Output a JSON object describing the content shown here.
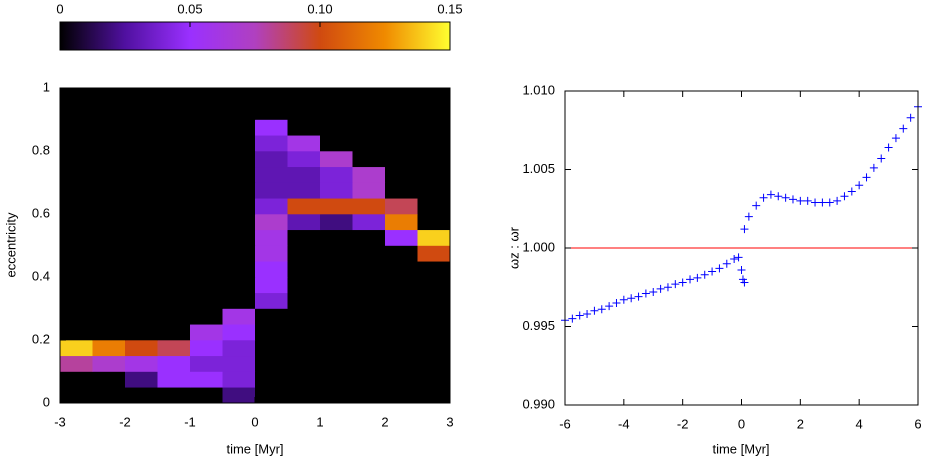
{
  "chart_data": [
    {
      "type": "heatmap",
      "xlabel": "time [Myr]",
      "ylabel": "eccentricity",
      "x_bins": [
        -3,
        -2.5,
        -2,
        -1.5,
        -1,
        -0.5,
        0,
        0.5,
        1,
        1.5,
        2,
        2.5,
        3
      ],
      "y_bins": [
        0,
        0.05,
        0.1,
        0.15,
        0.2,
        0.25,
        0.3,
        0.35,
        0.4,
        0.45,
        0.5,
        0.55,
        0.6,
        0.65,
        0.7,
        0.75,
        0.8,
        0.85,
        0.9,
        0.95,
        1
      ],
      "z": [
        [
          0,
          0,
          0,
          0,
          0,
          0.02,
          0,
          0,
          0,
          0,
          0,
          0
        ],
        [
          0,
          0,
          0.02,
          0.05,
          0.05,
          0.04,
          0,
          0,
          0,
          0,
          0,
          0
        ],
        [
          0.08,
          0.07,
          0.06,
          0.05,
          0.04,
          0.04,
          0,
          0,
          0,
          0,
          0,
          0
        ],
        [
          0.14,
          0.12,
          0.1,
          0.09,
          0.05,
          0.04,
          0,
          0,
          0,
          0,
          0,
          0
        ],
        [
          0,
          0,
          0,
          0,
          0.06,
          0.05,
          0,
          0,
          0,
          0,
          0,
          0
        ],
        [
          0,
          0,
          0,
          0,
          0,
          0.06,
          0,
          0,
          0,
          0,
          0,
          0
        ],
        [
          0,
          0,
          0,
          0,
          0,
          0,
          0.04,
          0,
          0,
          0,
          0,
          0
        ],
        [
          0,
          0,
          0,
          0,
          0,
          0,
          0.05,
          0,
          0,
          0,
          0,
          0
        ],
        [
          0,
          0,
          0,
          0,
          0,
          0,
          0.05,
          0,
          0,
          0,
          0,
          0
        ],
        [
          0,
          0,
          0,
          0,
          0,
          0,
          0.06,
          0,
          0,
          0,
          0,
          0.1
        ],
        [
          0,
          0,
          0,
          0,
          0,
          0,
          0.06,
          0,
          0,
          0,
          0.05,
          0.14
        ],
        [
          0,
          0,
          0,
          0,
          0,
          0,
          0.07,
          0.03,
          0.02,
          0.04,
          0.12,
          0
        ],
        [
          0,
          0,
          0,
          0,
          0,
          0,
          0.04,
          0.1,
          0.1,
          0.1,
          0.09,
          0
        ],
        [
          0,
          0,
          0,
          0,
          0,
          0,
          0.03,
          0.03,
          0.04,
          0.07,
          0,
          0
        ],
        [
          0,
          0,
          0,
          0,
          0,
          0,
          0.03,
          0.03,
          0.04,
          0.07,
          0,
          0
        ],
        [
          0,
          0,
          0,
          0,
          0,
          0,
          0.03,
          0.04,
          0.07,
          0,
          0,
          0
        ],
        [
          0,
          0,
          0,
          0,
          0,
          0,
          0.04,
          0.06,
          0,
          0,
          0,
          0
        ],
        [
          0,
          0,
          0,
          0,
          0,
          0,
          0.05,
          0,
          0,
          0,
          0,
          0
        ],
        [
          0,
          0,
          0,
          0,
          0,
          0,
          0,
          0,
          0,
          0,
          0,
          0
        ],
        [
          0,
          0,
          0,
          0,
          0,
          0,
          0,
          0,
          0,
          0,
          0,
          0
        ]
      ],
      "xlim": [
        -3,
        3
      ],
      "xticks": [
        -3,
        -2,
        -1,
        0,
        1,
        2,
        3
      ],
      "ylim": [
        0,
        1
      ],
      "yticks": [
        0,
        0.2,
        0.4,
        0.6,
        0.8,
        1
      ],
      "zlim": [
        0,
        0.15
      ],
      "zticks": [
        0,
        0.05,
        {
          "value": 0.1,
          "label": "0.10"
        },
        0.15
      ],
      "colormap": [
        "#000000",
        "#5010a0",
        "#9a30ff",
        "#b040c0",
        "#d04a10",
        "#f08a00",
        "#ffff30"
      ],
      "background": "#000000"
    },
    {
      "type": "scatter",
      "xlabel": "time [Myr]",
      "ylabel": "ωz : ωr",
      "x": [
        -6,
        -5.75,
        -5.5,
        -5.25,
        -5,
        -4.75,
        -4.5,
        -4.25,
        -4,
        -3.75,
        -3.5,
        -3.25,
        -3,
        -2.75,
        -2.5,
        -2.25,
        -2,
        -1.75,
        -1.5,
        -1.25,
        -1,
        -0.75,
        -0.5,
        -0.25,
        -0.1,
        0,
        0.05,
        0.1,
        0.1,
        0.25,
        0.5,
        0.75,
        1,
        1.25,
        1.5,
        1.75,
        2,
        2.25,
        2.5,
        2.75,
        3,
        3.25,
        3.5,
        3.75,
        4,
        4.25,
        4.5,
        4.75,
        5,
        5.25,
        5.5,
        5.75,
        6
      ],
      "series": [
        {
          "color": "#0000ff",
          "values": [
            0.9954,
            0.9955,
            0.9957,
            0.9958,
            0.996,
            0.9961,
            0.9963,
            0.9965,
            0.9967,
            0.9968,
            0.9969,
            0.9971,
            0.9972,
            0.9974,
            0.9975,
            0.9977,
            0.9978,
            0.998,
            0.9981,
            0.9983,
            0.9985,
            0.9987,
            0.999,
            0.9993,
            0.9994,
            0.9986,
            0.998,
            0.9978,
            1.0012,
            1.002,
            1.0027,
            1.0032,
            1.0034,
            1.0033,
            1.0032,
            1.0031,
            1.003,
            1.003,
            1.0029,
            1.0029,
            1.0029,
            1.003,
            1.0033,
            1.0036,
            1.004,
            1.0045,
            1.0051,
            1.0057,
            1.0064,
            1.007,
            1.0076,
            1.0083,
            1.009
          ]
        }
      ],
      "hline": 1,
      "hline_color": "#ff0000",
      "xlim": [
        -6,
        6
      ],
      "xticks": [
        -6,
        -4,
        -2,
        0,
        2,
        4,
        6
      ],
      "ylim": [
        0.99,
        1.01
      ],
      "yticks": [
        {
          "value": 0.99,
          "label": "0.990"
        },
        0.995,
        {
          "value": 1,
          "label": "1.000"
        },
        1.005,
        {
          "value": 1.01,
          "label": "1.010"
        }
      ]
    }
  ]
}
